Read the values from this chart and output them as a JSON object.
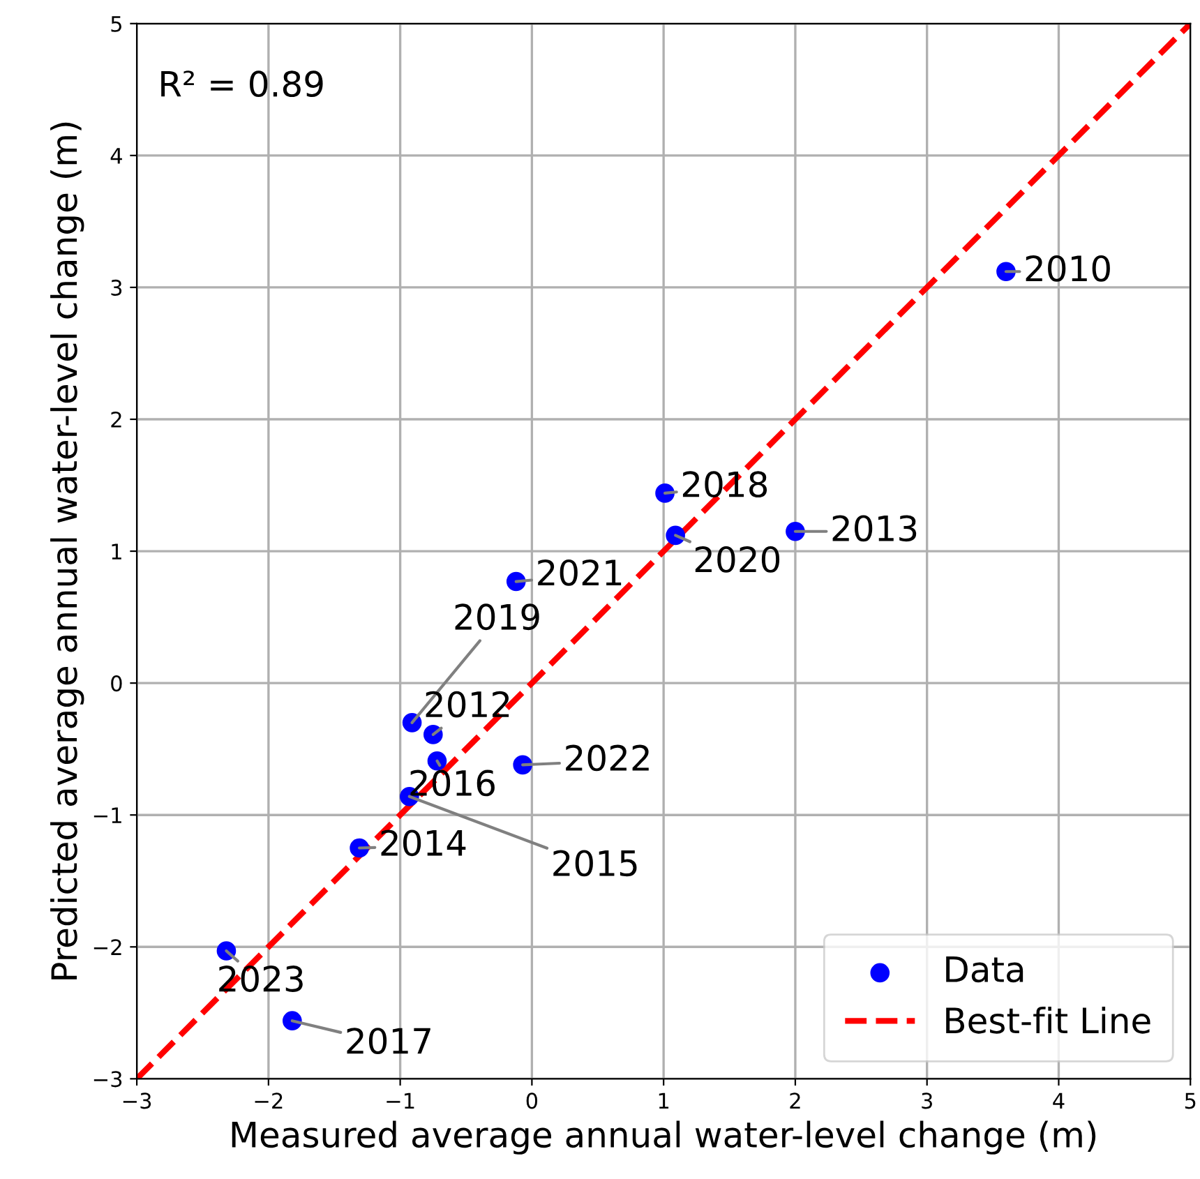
{
  "chart_data": {
    "type": "scatter",
    "xlabel": "Measured average annual water-level change (m)",
    "ylabel": "Predicted average annual water-level change (m)",
    "xlim": [
      -3,
      5
    ],
    "ylim": [
      -3,
      5
    ],
    "xticks": [
      {
        "value": -3,
        "label": "−3"
      },
      {
        "value": -2,
        "label": "−2"
      },
      {
        "value": -1,
        "label": "−1"
      },
      0,
      1,
      2,
      3,
      4,
      5
    ],
    "yticks": [
      {
        "value": -3,
        "label": "−3"
      },
      {
        "value": -2,
        "label": "−2"
      },
      {
        "value": -1,
        "label": "−1"
      },
      0,
      1,
      2,
      3,
      4,
      5
    ],
    "grid": true,
    "legend": "bottom right",
    "marker": "circle",
    "series": [
      {
        "name": "Data",
        "color": "#0000ff",
        "x": [
          3.6,
          1.01,
          1.09,
          2.0,
          -0.12,
          -0.91,
          -0.75,
          -0.72,
          -0.93,
          -0.07,
          -1.31,
          -2.32,
          -1.82
        ],
        "values": [
          3.12,
          1.44,
          1.12,
          1.15,
          0.77,
          -0.3,
          -0.39,
          -0.59,
          -0.86,
          -0.62,
          -1.25,
          -2.03,
          -2.56
        ]
      },
      {
        "name": "Best-fit Line",
        "type": "line",
        "color": "#ff0000",
        "line_style": "dashed",
        "marker": "none",
        "x": [
          -3,
          5
        ],
        "values": [
          -3,
          5
        ]
      }
    ],
    "annotations": [
      "R² = 0.89",
      {
        "text": "2010",
        "x": 3.6,
        "y": 3.12
      },
      {
        "text": "2018",
        "x": 1.01,
        "y": 1.44
      },
      {
        "text": "2020",
        "x": 1.09,
        "y": 1.12
      },
      {
        "text": "2013",
        "x": 2.0,
        "y": 1.15
      },
      {
        "text": "2021",
        "x": -0.12,
        "y": 0.77
      },
      {
        "text": "2019",
        "x": -0.91,
        "y": -0.3
      },
      {
        "text": "2012",
        "x": -0.75,
        "y": -0.39
      },
      {
        "text": "2016",
        "x": -0.72,
        "y": -0.59
      },
      {
        "text": "2015",
        "x": -0.93,
        "y": -0.86
      },
      {
        "text": "2022",
        "x": -0.07,
        "y": -0.62
      },
      {
        "text": "2014",
        "x": -1.31,
        "y": -1.25
      },
      {
        "text": "2023",
        "x": -2.32,
        "y": -2.03
      },
      {
        "text": "2017",
        "x": -1.82,
        "y": -2.56
      }
    ]
  }
}
